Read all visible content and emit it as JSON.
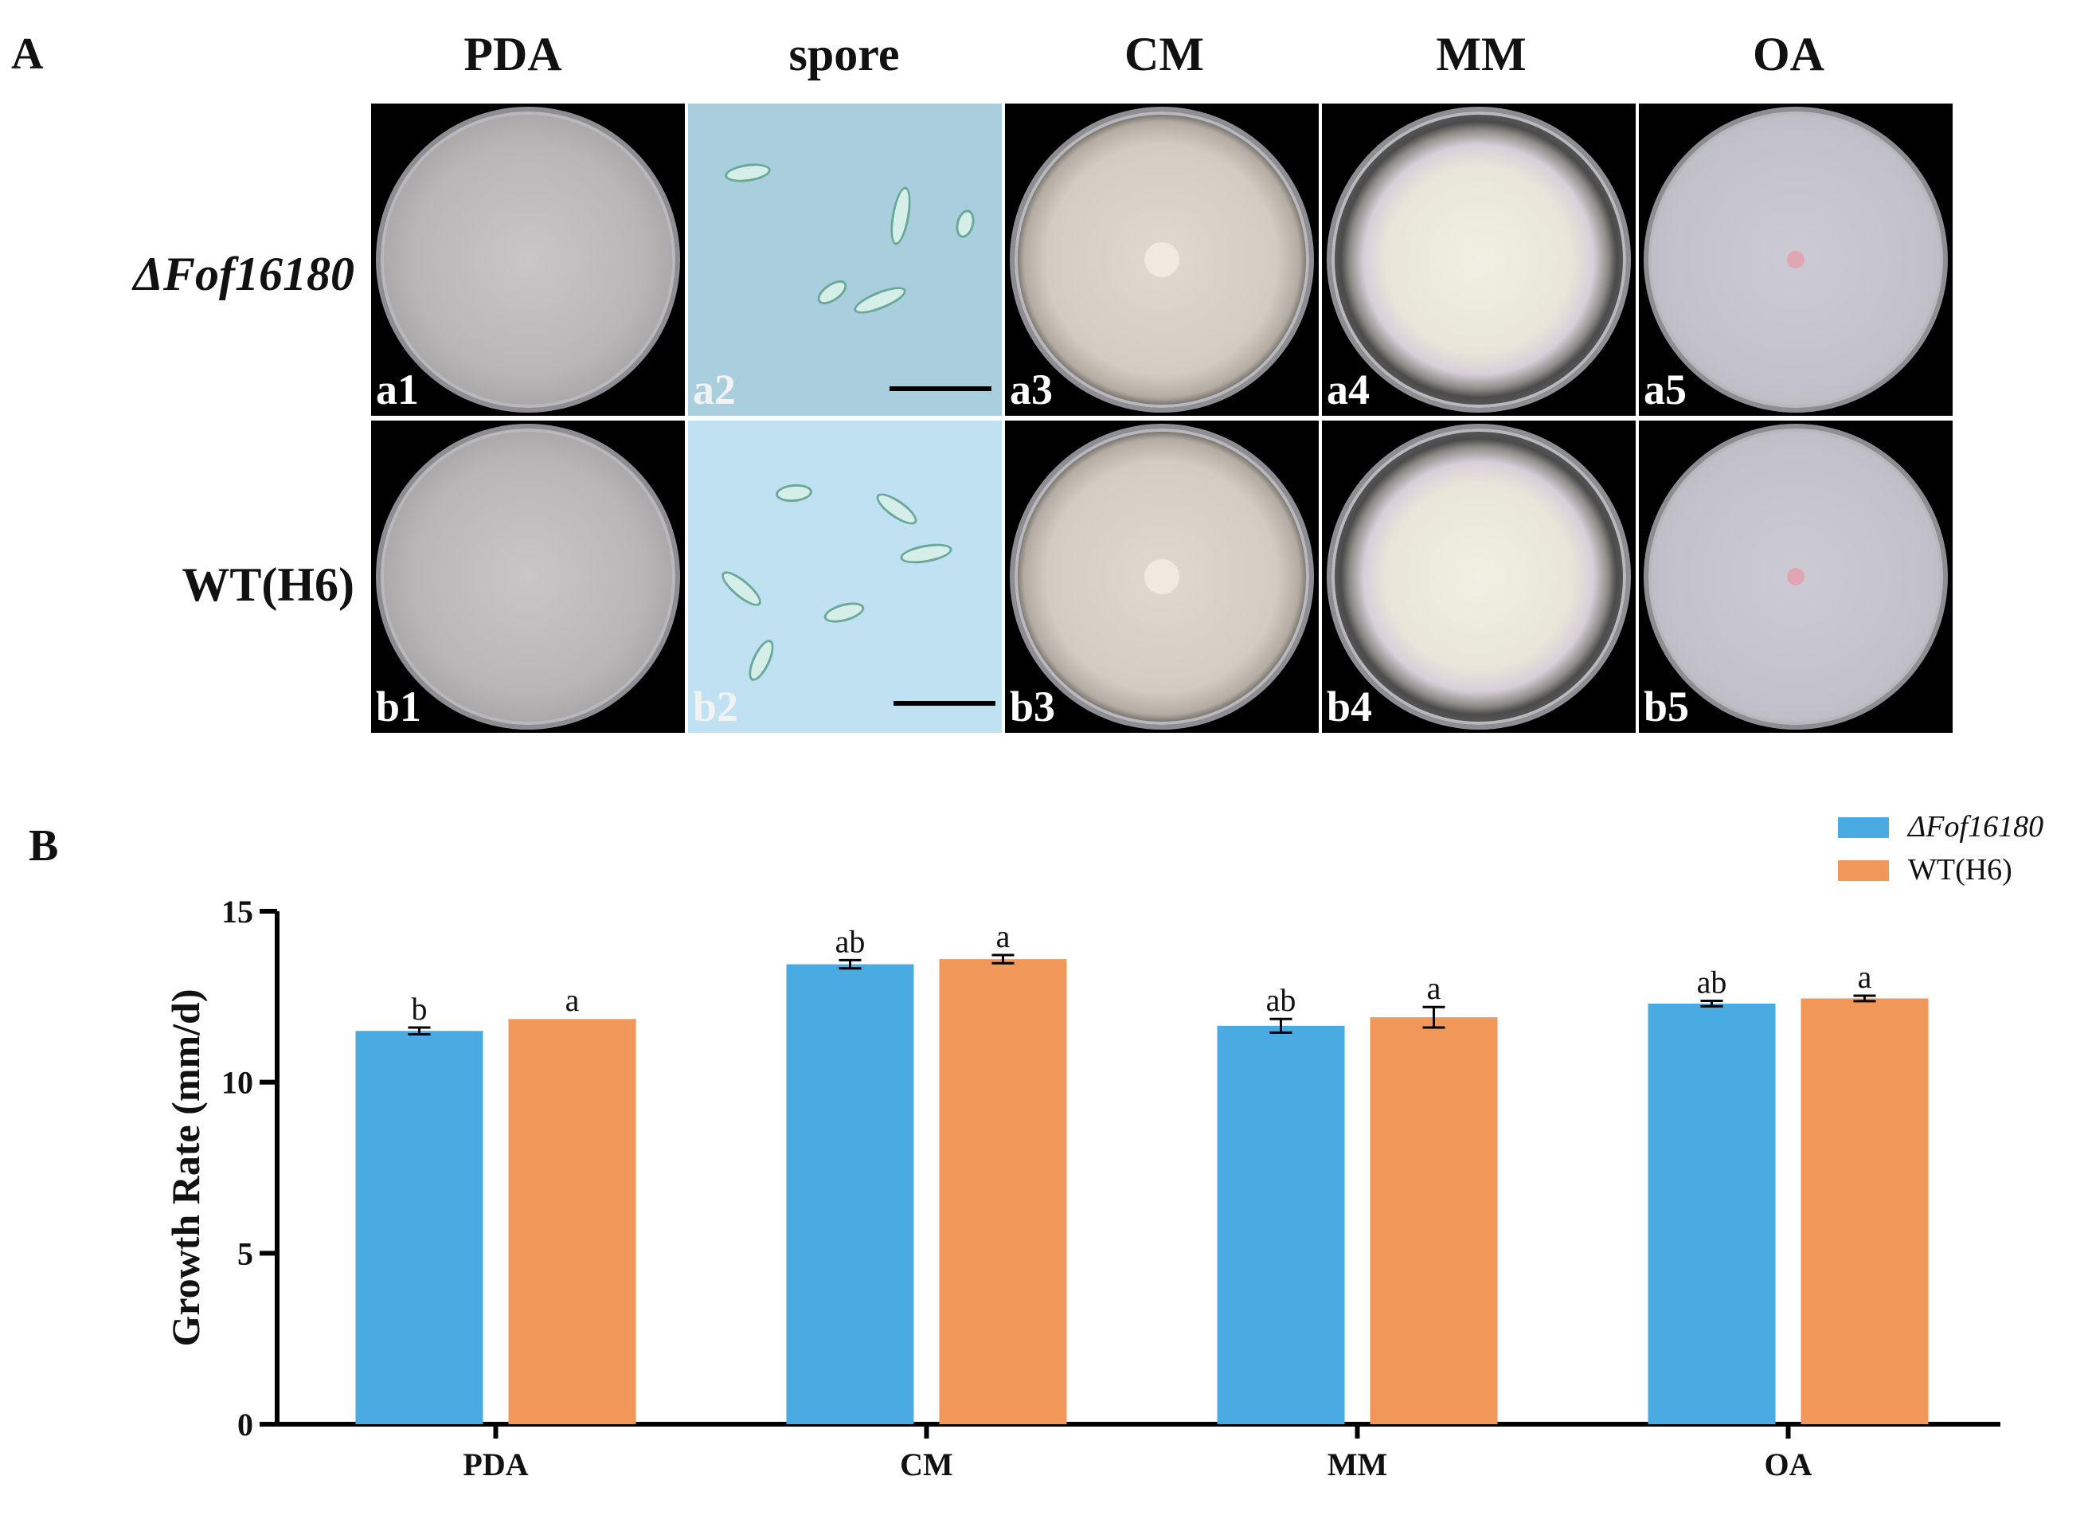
{
  "figure": {
    "panel_a_letter": "A",
    "panel_b_letter": "B",
    "column_headers": [
      "PDA",
      "spore",
      "CM",
      "MM",
      "OA"
    ],
    "row_labels": [
      "ΔFof16180",
      "WT(H6)"
    ],
    "tile_labels": {
      "row_a": [
        "a1",
        "a2",
        "a3",
        "a4",
        "a5"
      ],
      "row_b": [
        "b1",
        "b2",
        "b3",
        "b4",
        "b5"
      ]
    },
    "tile_contents": [
      "culture-dish-photo",
      "spore-micrograph",
      "culture-dish-photo",
      "culture-dish-photo",
      "culture-dish-photo"
    ]
  },
  "chart_data": {
    "type": "bar",
    "categories": [
      "PDA",
      "CM",
      "MM",
      "OA"
    ],
    "ylabel": "Growth Rate (mm/d)",
    "xlabel": "",
    "ylim": [
      0,
      15
    ],
    "yticks": [
      0,
      5,
      10,
      15
    ],
    "legend_position": "top-right",
    "series": [
      {
        "name": "ΔFof16180",
        "color": "#4aaae2",
        "values": [
          11.5,
          13.45,
          11.65,
          12.3
        ],
        "errors": [
          0.1,
          0.12,
          0.2,
          0.08
        ],
        "significance": [
          "b",
          "ab",
          "ab",
          "ab"
        ]
      },
      {
        "name": "WT(H6)",
        "color": "#f2975a",
        "values": [
          11.85,
          13.6,
          11.9,
          12.45
        ],
        "errors": [
          0,
          0.12,
          0.3,
          0.08
        ],
        "significance": [
          "a",
          "a",
          "a",
          "a"
        ]
      }
    ]
  }
}
